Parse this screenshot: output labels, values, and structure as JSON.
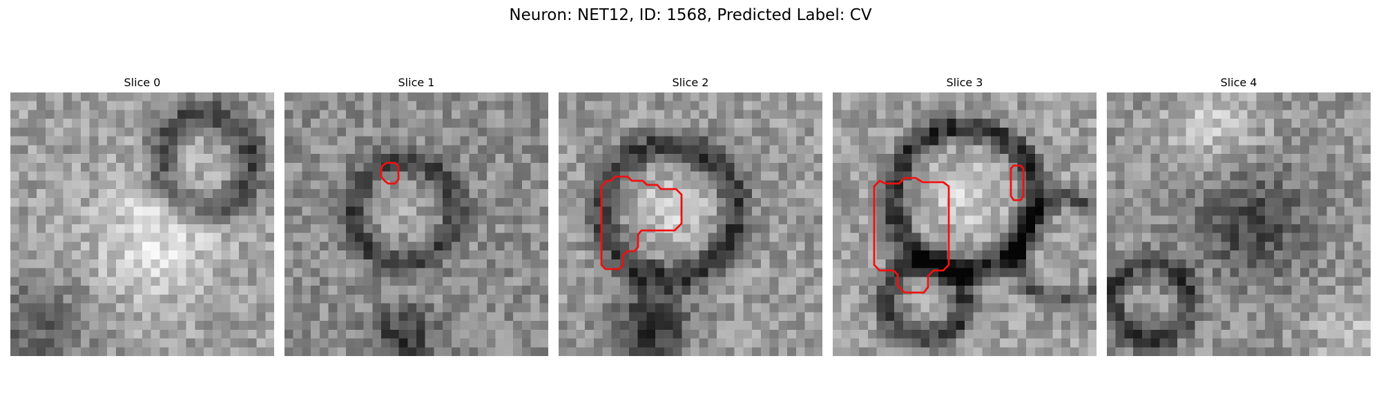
{
  "figure": {
    "title": "Neuron: NET12, ID: 1568, Predicted Label: CV"
  },
  "panels": [
    {
      "title": "Slice 0",
      "has_contour": false
    },
    {
      "title": "Slice 1",
      "has_contour": true
    },
    {
      "title": "Slice 2",
      "has_contour": true
    },
    {
      "title": "Slice 3",
      "has_contour": true
    },
    {
      "title": "Slice 4",
      "has_contour": false
    }
  ],
  "colors": {
    "contour": "#ee1111",
    "background": "#ffffff"
  },
  "image_style": "grayscale pixel grid"
}
